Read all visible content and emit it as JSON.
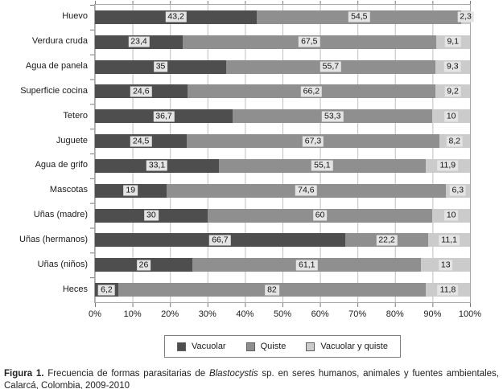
{
  "figure": {
    "caption": {
      "label": "Figura 1.",
      "text_pre_italic": " Frecuencia de formas parasitarias de ",
      "italic_term": "Blastocystis",
      "text_post_italic": " sp. en seres humanos, animales y fuentes ambientales, Calarcá, Colombia, 2009-2010"
    }
  },
  "chart_data": {
    "type": "bar",
    "orientation": "horizontal",
    "stacked": true,
    "grid": true,
    "legend_position": "bottom",
    "xlim": [
      0,
      100
    ],
    "x_tick_labels": [
      "0%",
      "10%",
      "20%",
      "30%",
      "40%",
      "50%",
      "60%",
      "70%",
      "80%",
      "90%",
      "100%"
    ],
    "categories": [
      "Huevo",
      "Verdura cruda",
      "Agua de panela",
      "Superficie cocina",
      "Tetero",
      "Juguete",
      "Agua de grifo",
      "Mascotas",
      "Uñas (madre)",
      "Uñas (hermanos)",
      "Uñas (niños)",
      "Heces"
    ],
    "series": [
      {
        "name": "Vacuolar",
        "color": "#4e4e4e",
        "values": [
          43.2,
          23.4,
          35,
          24.6,
          36.7,
          24.5,
          33.1,
          19,
          30,
          66.7,
          26,
          6.2
        ],
        "value_labels": [
          "43,2",
          "23,4",
          "35",
          "24,6",
          "36,7",
          "24,5",
          "33,1",
          "19",
          "30",
          "66,7",
          "26",
          "6,2"
        ]
      },
      {
        "name": "Quiste",
        "color": "#8f8f8f",
        "values": [
          54.5,
          67.5,
          55.7,
          66.2,
          53.3,
          67.3,
          55.1,
          74.6,
          60,
          22.2,
          61.1,
          82
        ],
        "value_labels": [
          "54,5",
          "67,5",
          "55,7",
          "66,2",
          "53,3",
          "67,3",
          "55,1",
          "74,6",
          "60",
          "22,2",
          "61,1",
          "82"
        ]
      },
      {
        "name": "Vacuolar y quiste",
        "color": "#cbcbcb",
        "values": [
          2.3,
          9.1,
          9.3,
          9.2,
          10,
          8.2,
          11.9,
          6.3,
          10,
          11.1,
          13,
          11.8
        ],
        "value_labels": [
          "2,3",
          "9,1",
          "9,3",
          "9,2",
          "10",
          "8,2",
          "11,9",
          "6,3",
          "10",
          "11,1",
          "13",
          "11,8"
        ]
      }
    ],
    "style": {
      "gridline_color": "#bdbdbd",
      "plot_border_color": "#a8a8a8",
      "tick_color": "#777777",
      "value_label_bg": "#e4e4e4"
    }
  }
}
